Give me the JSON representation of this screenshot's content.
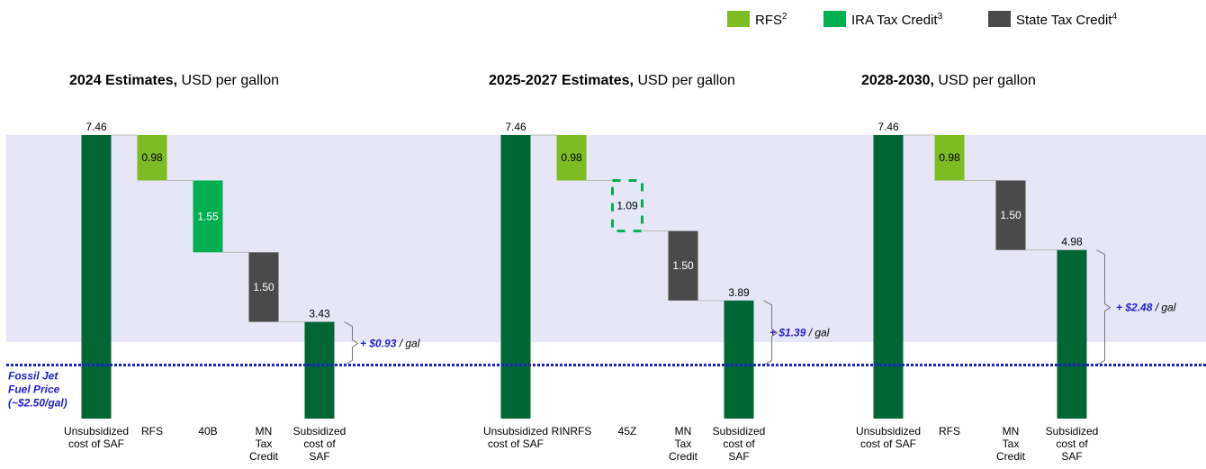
{
  "legend": {
    "placement": "top-right",
    "items": [
      {
        "label": "RFS",
        "sup": "2",
        "color": "#7dbd23"
      },
      {
        "label": "IRA Tax Credit",
        "sup": "3",
        "color": "#00b050"
      },
      {
        "label": "State Tax Credit",
        "sup": "4",
        "color": "#4a4a4a"
      }
    ]
  },
  "reference_line": {
    "label_lines": [
      "Fossil Jet",
      "Fuel Price",
      "(~$2.50/gal)"
    ],
    "value": 2.5,
    "color": "#1f1fcf"
  },
  "colors": {
    "total": "#006633",
    "rfs": "#7dbd23",
    "ira": "#00b050",
    "state": "#4a4a4a",
    "band": "#e6e6f7",
    "premium_text": "#1f1fcf"
  },
  "chart_data": [
    {
      "type": "bar",
      "title_bold": "2024 Estimates,",
      "title_rest": " USD per gallon",
      "ylim": [
        0,
        8
      ],
      "bars": [
        {
          "category": "Unsubsidized cost of SAF",
          "label_lines": [
            "Unsubsidized",
            "cost of SAF"
          ],
          "kind": "total",
          "value": 7.46,
          "label": "7.46"
        },
        {
          "category": "RFS",
          "label_lines": [
            "RFS"
          ],
          "kind": "rfs",
          "value": 0.98,
          "label": "0.98"
        },
        {
          "category": "40B",
          "label_lines": [
            "40B"
          ],
          "kind": "ira",
          "value": 1.55,
          "label": "1.55"
        },
        {
          "category": "MN Tax Credit",
          "label_lines": [
            "MN",
            "Tax",
            "Credit"
          ],
          "kind": "state",
          "value": 1.5,
          "label": "1.50"
        },
        {
          "category": "Subsidized cost of SAF",
          "label_lines": [
            "Subsidized",
            "cost of",
            "SAF"
          ],
          "kind": "total",
          "value": 3.43,
          "label": "3.43"
        }
      ],
      "premium": {
        "amount": "+ $0.93",
        "unit": " / gal",
        "from": 2.5,
        "to": 3.43
      }
    },
    {
      "type": "bar",
      "title_bold": "2025-2027 Estimates,",
      "title_rest": " USD per gallon",
      "ylim": [
        0,
        8
      ],
      "bars": [
        {
          "category": "Unsubsidized cost of SAF",
          "label_lines": [
            "Unsubsidized",
            "cost of SAF"
          ],
          "kind": "total",
          "value": 7.46,
          "label": "7.46"
        },
        {
          "category": "RINRFS",
          "label_lines": [
            "RINRFS"
          ],
          "kind": "rfs",
          "value": 0.98,
          "label": "0.98"
        },
        {
          "category": "45Z",
          "label_lines": [
            "45Z"
          ],
          "kind": "ira-dashed",
          "value": 1.09,
          "label": "1.09"
        },
        {
          "category": "MN Tax Credit",
          "label_lines": [
            "MN",
            "Tax",
            "Credit"
          ],
          "kind": "state",
          "value": 1.5,
          "label": "1.50"
        },
        {
          "category": "Subsidized cost of SAF",
          "label_lines": [
            "Subsidized",
            "cost of",
            "SAF"
          ],
          "kind": "total",
          "value": 3.89,
          "label": "3.89"
        }
      ],
      "premium": {
        "amount": "+ $1.39",
        "unit": " / gal",
        "from": 2.5,
        "to": 3.89
      }
    },
    {
      "type": "bar",
      "title_bold": "2028-2030,",
      "title_rest": " USD per gallon",
      "ylim": [
        0,
        8
      ],
      "bars": [
        {
          "category": "Unsubsidized cost of SAF",
          "label_lines": [
            "Unsubsidized",
            "cost of SAF"
          ],
          "kind": "total",
          "value": 7.46,
          "label": "7.46"
        },
        {
          "category": "RFS",
          "label_lines": [
            "RFS"
          ],
          "kind": "rfs",
          "value": 0.98,
          "label": "0.98"
        },
        {
          "category": "MN Tax Credit",
          "label_lines": [
            "MN",
            "Tax",
            "Credit"
          ],
          "kind": "state",
          "value": 1.5,
          "label": "1.50"
        },
        {
          "category": "Subsidized cost of SAF",
          "label_lines": [
            "Subsidized",
            "cost of",
            "SAF"
          ],
          "kind": "total",
          "value": 4.98,
          "label": "4.98"
        }
      ],
      "premium": {
        "amount": "+ $2.48",
        "unit": " / gal",
        "from": 2.5,
        "to": 4.98
      }
    }
  ]
}
